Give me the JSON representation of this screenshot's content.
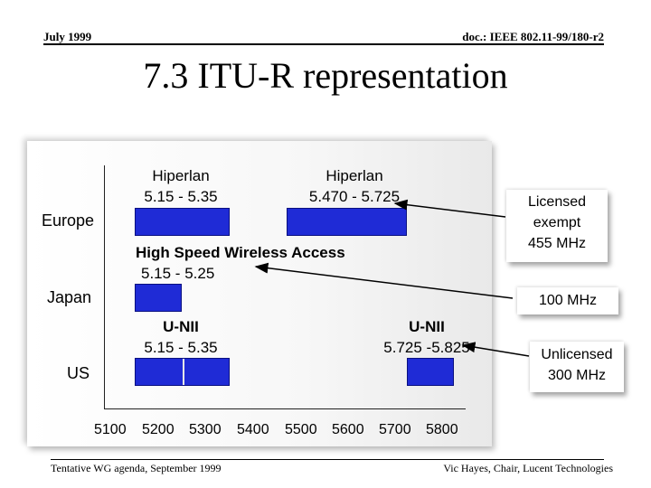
{
  "header": {
    "date": "July 1999",
    "doc_id": "doc.: IEEE 802.11-99/180-r2"
  },
  "title": "7.3 ITU-R representation",
  "regions": {
    "europe": "Europe",
    "japan": "Japan",
    "us": "US"
  },
  "bands": {
    "europe_low": {
      "name": "Hiperlan",
      "range": "5.15 - 5.35",
      "start": 5150,
      "end": 5350
    },
    "europe_high": {
      "name": "Hiperlan",
      "range": "5.470 - 5.725",
      "start": 5470,
      "end": 5725
    },
    "japan": {
      "name": "High Speed Wireless Access",
      "range": "5.15 - 5.25",
      "start": 5150,
      "end": 5250
    },
    "us_low": {
      "name": "U-NII",
      "range": "5.15 - 5.35",
      "start": 5150,
      "end": 5350
    },
    "us_high": {
      "name": "U-NII",
      "range": "5.725 -5.825",
      "start": 5725,
      "end": 5825
    }
  },
  "axis": {
    "ticks": [
      "5100",
      "5200",
      "5300",
      "5400",
      "5500",
      "5600",
      "5700",
      "5800"
    ],
    "min": 5100,
    "max": 5800
  },
  "side_boxes": {
    "licensed_exempt": {
      "line1": "Licensed",
      "line2": "exempt",
      "line3": "455 MHz"
    },
    "japan_total": {
      "line1": "100 MHz"
    },
    "unlicensed": {
      "line1": "Unlicensed",
      "line2": "300 MHz"
    }
  },
  "footer": {
    "left": "Tentative WG agenda, September 1999",
    "right": "Vic Hayes, Chair, Lucent Technologies"
  },
  "colors": {
    "bar": "#1f2bd6",
    "bar_divider": "#e8e8e8"
  }
}
